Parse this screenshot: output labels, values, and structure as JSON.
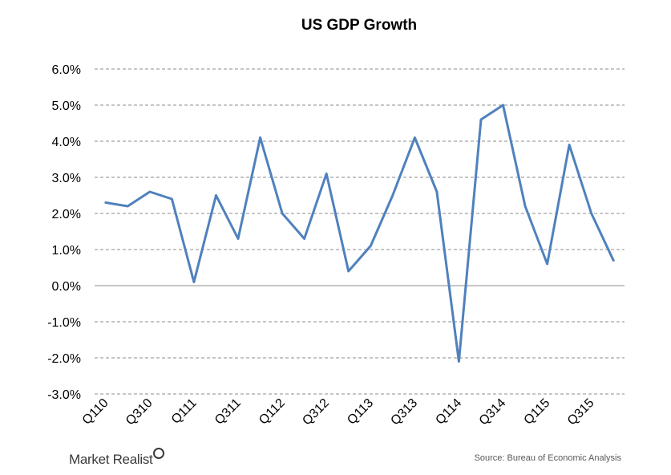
{
  "brand": {
    "name": "Market Realist",
    "icon": "magnifier-icon"
  },
  "source": "Source: Bureau of Economic Analysis",
  "colors": {
    "series": "#4f81bd",
    "grid": "#8c8c8c"
  },
  "chart_data": {
    "type": "line",
    "title": "US GDP Growth",
    "xlabel": "",
    "ylabel": "",
    "ylim": [
      -3.0,
      6.0
    ],
    "yticks": [
      "6.0%",
      "5.0%",
      "4.0%",
      "3.0%",
      "2.0%",
      "1.0%",
      "0.0%",
      "-1.0%",
      "-2.0%",
      "-3.0%"
    ],
    "ytick_values": [
      6,
      5,
      4,
      3,
      2,
      1,
      0,
      -1,
      -2,
      -3
    ],
    "x_tick_labels": [
      "Q110",
      "Q310",
      "Q111",
      "Q311",
      "Q112",
      "Q312",
      "Q113",
      "Q313",
      "Q114",
      "Q314",
      "Q115",
      "Q315"
    ],
    "grid": true,
    "legend": "none",
    "categories": [
      "Q110",
      "Q210",
      "Q310",
      "Q410",
      "Q111",
      "Q211",
      "Q311",
      "Q411",
      "Q112",
      "Q212",
      "Q312",
      "Q412",
      "Q113",
      "Q213",
      "Q313",
      "Q413",
      "Q114",
      "Q214",
      "Q314",
      "Q414",
      "Q115",
      "Q215",
      "Q315",
      "Q415"
    ],
    "values": [
      2.3,
      2.2,
      2.6,
      2.4,
      0.1,
      2.5,
      1.3,
      4.1,
      2.0,
      1.3,
      3.1,
      0.4,
      1.1,
      2.5,
      4.1,
      2.6,
      -2.1,
      4.6,
      5.0,
      2.2,
      0.6,
      3.9,
      2.0,
      0.7
    ]
  }
}
